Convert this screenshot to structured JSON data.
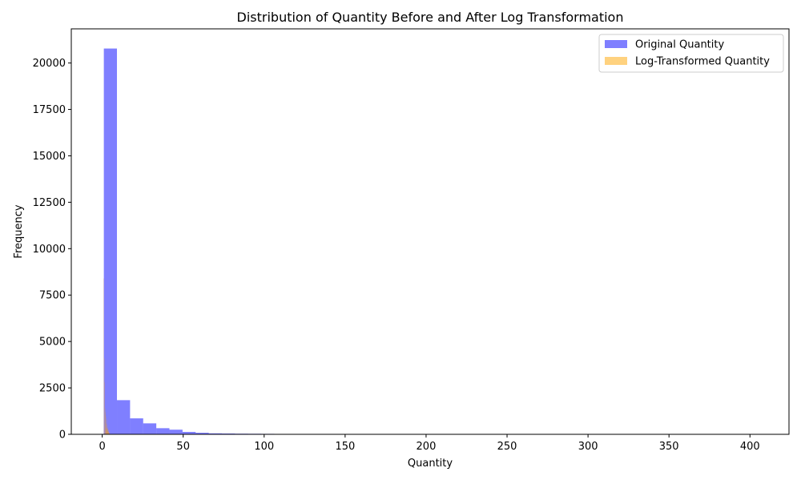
{
  "chart_data": {
    "type": "bar",
    "title": "Distribution of Quantity Before and After Log Transformation",
    "xlabel": "Quantity",
    "ylabel": "Frequency",
    "xlim": [
      -19.1,
      424.1
    ],
    "ylim": [
      0,
      21840
    ],
    "x_ticks": [
      0,
      50,
      100,
      150,
      200,
      250,
      300,
      350,
      400
    ],
    "y_ticks": [
      0,
      2500,
      5000,
      7500,
      10000,
      12500,
      15000,
      17500,
      20000
    ],
    "legend_position": "upper right",
    "series": [
      {
        "name": "Original Quantity",
        "color": "#0000ff",
        "opacity": 0.5,
        "bin_edges": [
          1,
          9.1,
          17.2,
          25.3,
          33.4,
          41.5,
          49.6,
          57.7,
          65.8,
          73.9,
          82,
          90.1,
          98.2,
          106.3,
          114.4,
          122.5,
          130.6,
          138.7,
          146.8,
          154.9,
          163,
          171.1,
          179.2,
          187.3,
          195.4,
          203.5,
          211.6,
          219.7,
          227.8,
          235.9,
          244,
          252.1,
          260.2,
          268.3,
          276.4,
          284.5,
          292.6,
          300.7,
          308.8,
          316.9,
          325,
          333.1,
          341.2,
          349.3,
          357.4,
          365.5,
          373.6,
          381.7,
          389.8,
          397.9,
          406
        ],
        "counts": [
          20780,
          1840,
          860,
          590,
          330,
          250,
          130,
          85,
          55,
          45,
          35,
          30,
          25,
          15,
          10,
          8,
          6,
          5,
          4,
          3,
          2,
          2,
          2,
          1,
          1,
          1,
          1,
          1,
          1,
          1,
          0,
          0,
          1,
          0,
          0,
          1,
          0,
          0,
          0,
          0,
          1,
          0,
          0,
          0,
          0,
          0,
          0,
          0,
          0,
          1
        ]
      },
      {
        "name": "Log-Transformed Quantity",
        "color": "#ffa500",
        "opacity": 0.5,
        "bin_edges": [
          0.693,
          0.786,
          0.879,
          0.972,
          1.065,
          1.158,
          1.251,
          1.344,
          1.437,
          1.53,
          1.623,
          1.716,
          1.809,
          1.902,
          1.995,
          2.088,
          2.181,
          2.274,
          2.367,
          2.46,
          2.553,
          2.646,
          2.739,
          2.832,
          2.925,
          3.018,
          3.111,
          3.204,
          3.297,
          3.39,
          3.483,
          3.576,
          3.669,
          3.762,
          3.855,
          3.948,
          4.041,
          4.134,
          4.227,
          4.32,
          4.413,
          4.506,
          4.599,
          4.692,
          4.785,
          4.878,
          4.971,
          5.064,
          5.157,
          5.25,
          5.343
        ],
        "counts": [
          8400,
          0,
          0,
          0,
          0,
          0,
          4100,
          0,
          0,
          2800,
          0,
          1400,
          0,
          1200,
          1050,
          0,
          950,
          600,
          550,
          350,
          300,
          400,
          800,
          300,
          150,
          250,
          500,
          350,
          200,
          300,
          150,
          250,
          200,
          120,
          100,
          150,
          100,
          80,
          60,
          50,
          40,
          35,
          30,
          25,
          20,
          15,
          10,
          8,
          5,
          3
        ]
      }
    ]
  }
}
